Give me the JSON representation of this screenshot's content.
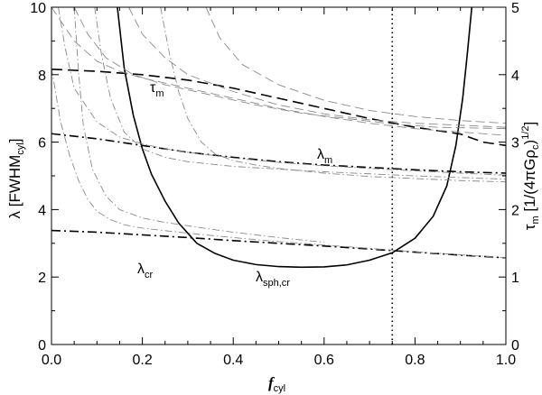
{
  "chart_data": {
    "type": "line",
    "x_range": [
      0.0,
      1.0
    ],
    "y_left_range": [
      0,
      10
    ],
    "y_right_range": [
      0,
      5
    ],
    "x_ticks": [
      "0.0",
      "0.2",
      "0.4",
      "0.6",
      "0.8",
      "1.0"
    ],
    "y_left_ticks": [
      "0",
      "2",
      "4",
      "6",
      "8",
      "10"
    ],
    "y_right_ticks": [
      "0",
      "1",
      "2",
      "3",
      "4",
      "5"
    ],
    "xlabel": {
      "main": "f",
      "sub": "cyl"
    },
    "ylabel_left": {
      "main": "λ [FWHM",
      "sub": "cyl",
      "tail": "]"
    },
    "ylabel_right": {
      "main": "τ",
      "sub": "m",
      "tail": " [1/(4πGρ",
      "sub2": "c",
      "tail2": ")",
      "sup": "1/2",
      "tail3": "]"
    },
    "vertical_marker_x": 0.75,
    "annotations": {
      "tau_m": {
        "main": "τ",
        "sub": "m"
      },
      "lambda_m": {
        "main": "λ",
        "sub": "m"
      },
      "lambda_cr": {
        "main": "λ",
        "sub": "cr"
      },
      "lambda_sph_cr": {
        "main": "λ",
        "sub": "sph,cr"
      }
    },
    "series": [
      {
        "axis": "right",
        "style": "dashed",
        "weight": "bold",
        "x": [
          0.0,
          0.1,
          0.2,
          0.3,
          0.4,
          0.5,
          0.6,
          0.7,
          0.8,
          0.9,
          0.95,
          1.0
        ],
        "y": [
          4.08,
          4.05,
          4.0,
          3.92,
          3.8,
          3.65,
          3.5,
          3.35,
          3.22,
          3.12,
          3.0,
          2.95
        ]
      },
      {
        "axis": "left",
        "style": "dashdot",
        "weight": "bold",
        "x": [
          0.0,
          0.1,
          0.2,
          0.3,
          0.4,
          0.5,
          0.6,
          0.7,
          0.8,
          0.9,
          1.0
        ],
        "y": [
          6.25,
          6.1,
          5.9,
          5.7,
          5.55,
          5.42,
          5.32,
          5.25,
          5.18,
          5.12,
          5.08
        ]
      },
      {
        "axis": "left",
        "style": "dashdot",
        "weight": "bold",
        "x": [
          0.0,
          0.1,
          0.2,
          0.3,
          0.4,
          0.5,
          0.6,
          0.7,
          0.8,
          0.9,
          1.0
        ],
        "y": [
          3.38,
          3.33,
          3.25,
          3.17,
          3.08,
          3.0,
          2.92,
          2.83,
          2.74,
          2.65,
          2.57
        ]
      },
      {
        "axis": "left",
        "style": "solid",
        "weight": "bold",
        "x": [
          0.145,
          0.16,
          0.18,
          0.2,
          0.22,
          0.25,
          0.28,
          0.32,
          0.36,
          0.4,
          0.45,
          0.5,
          0.55,
          0.6,
          0.65,
          0.7,
          0.75,
          0.8,
          0.84,
          0.87,
          0.89,
          0.905,
          0.915,
          0.925
        ],
        "y": [
          10.0,
          8.2,
          6.8,
          5.8,
          5.05,
          4.25,
          3.6,
          3.0,
          2.7,
          2.5,
          2.37,
          2.31,
          2.29,
          2.3,
          2.36,
          2.5,
          2.72,
          3.15,
          3.8,
          4.7,
          5.9,
          7.3,
          8.6,
          10.0
        ]
      },
      {
        "axis": "left",
        "style": "dotted",
        "weight": "bold",
        "x": [
          0.75,
          0.75
        ],
        "y": [
          0,
          10
        ]
      },
      {
        "axis": "right",
        "style": "dashed",
        "weight": "light",
        "x": [
          0.0,
          0.02,
          0.05,
          0.1,
          0.15,
          0.2,
          0.3,
          0.4,
          0.5,
          0.6,
          0.7,
          0.8,
          0.9,
          1.0
        ],
        "y": [
          5.0,
          4.8,
          4.5,
          4.2,
          4.05,
          3.95,
          3.8,
          3.65,
          3.5,
          3.38,
          3.28,
          3.2,
          3.15,
          3.1
        ]
      },
      {
        "axis": "right",
        "style": "dashed",
        "weight": "light",
        "x": [
          0.05,
          0.08,
          0.12,
          0.18,
          0.25,
          0.35,
          0.45,
          0.55,
          0.65,
          0.75,
          0.85,
          1.0
        ],
        "y": [
          5.0,
          4.6,
          4.25,
          4.0,
          3.85,
          3.7,
          3.55,
          3.43,
          3.35,
          3.27,
          3.22,
          3.2
        ]
      },
      {
        "axis": "right",
        "style": "dashed",
        "weight": "light",
        "x": [
          0.17,
          0.2,
          0.25,
          0.3,
          0.4,
          0.5,
          0.6,
          0.7,
          0.8,
          0.9,
          1.0
        ],
        "y": [
          5.0,
          4.6,
          4.25,
          4.0,
          3.75,
          3.55,
          3.42,
          3.33,
          3.28,
          3.25,
          3.22
        ]
      },
      {
        "axis": "right",
        "style": "dashed",
        "weight": "light",
        "x": [
          0.34,
          0.37,
          0.42,
          0.5,
          0.6,
          0.7,
          0.8,
          0.9,
          1.0
        ],
        "y": [
          5.0,
          4.55,
          4.15,
          3.85,
          3.62,
          3.47,
          3.38,
          3.32,
          3.28
        ]
      },
      {
        "axis": "left",
        "style": "dashdot",
        "weight": "light",
        "x": [
          0.015,
          0.03,
          0.05,
          0.1,
          0.15,
          0.2,
          0.25,
          0.3,
          0.4,
          0.5,
          0.6,
          0.7,
          0.8,
          0.9,
          1.0
        ],
        "y": [
          10.0,
          8.8,
          7.6,
          6.6,
          6.15,
          5.95,
          5.8,
          5.7,
          5.53,
          5.4,
          5.3,
          5.22,
          5.15,
          5.08,
          5.02
        ]
      },
      {
        "axis": "left",
        "style": "dashdot",
        "weight": "light",
        "x": [
          0.095,
          0.11,
          0.13,
          0.16,
          0.2,
          0.25,
          0.3,
          0.4,
          0.5,
          0.6,
          0.7,
          0.8,
          0.9,
          1.0
        ],
        "y": [
          10.0,
          8.6,
          7.3,
          6.3,
          5.8,
          5.55,
          5.42,
          5.28,
          5.2,
          5.12,
          5.06,
          5.0,
          4.95,
          4.9
        ]
      },
      {
        "axis": "left",
        "style": "dashdot",
        "weight": "light",
        "x": [
          0.0,
          0.02,
          0.04,
          0.06,
          0.08,
          0.1,
          0.13,
          0.16,
          0.2,
          0.3,
          0.4,
          0.5,
          0.6,
          0.7,
          0.8,
          0.9,
          1.0
        ],
        "y": [
          8.2,
          6.6,
          5.6,
          4.85,
          4.3,
          3.95,
          3.7,
          3.55,
          3.45,
          3.3,
          3.17,
          3.05,
          2.95,
          2.85,
          2.75,
          2.66,
          2.57
        ]
      },
      {
        "axis": "left",
        "style": "dashdot",
        "weight": "light",
        "x": [
          0.24,
          0.26,
          0.28,
          0.3,
          0.33,
          0.36,
          0.4,
          0.45,
          0.5,
          0.6,
          0.7,
          0.8,
          0.9,
          1.0
        ],
        "y": [
          10.0,
          8.6,
          7.5,
          6.7,
          6.0,
          5.65,
          5.45,
          5.32,
          5.22,
          5.08,
          4.98,
          4.92,
          4.86,
          4.82
        ]
      },
      {
        "axis": "left",
        "style": "dashdot",
        "weight": "light",
        "x": [
          0.05,
          0.06,
          0.07,
          0.09,
          0.12,
          0.15,
          0.2,
          0.25,
          0.3,
          0.35,
          0.4,
          0.5,
          0.6
        ],
        "y": [
          10.0,
          8.0,
          6.5,
          5.2,
          4.4,
          4.0,
          3.75,
          3.62,
          3.52,
          3.42,
          3.33,
          3.17,
          3.03
        ]
      }
    ]
  }
}
